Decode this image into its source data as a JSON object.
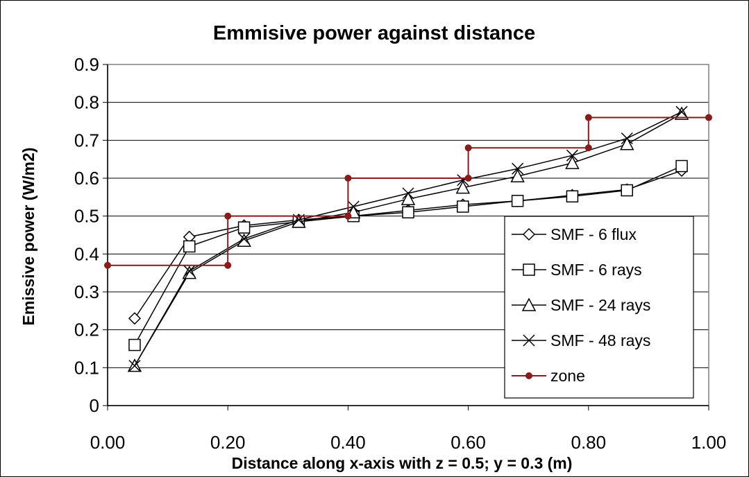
{
  "chart_data": {
    "type": "line",
    "title": "Emmisive power against distance",
    "xlabel": "Distance along x-axis with z = 0.5; y = 0.3 (m)",
    "ylabel": "Emissive power (W/m2)",
    "xlim": [
      0,
      1
    ],
    "ylim": [
      0,
      0.9
    ],
    "x_ticks": [
      "0.00",
      "0.20",
      "0.40",
      "0.60",
      "0.80",
      "1.00"
    ],
    "y_ticks": [
      "0",
      "0.1",
      "0.2",
      "0.3",
      "0.4",
      "0.5",
      "0.6",
      "0.7",
      "0.8",
      "0.9"
    ],
    "grid": "horizontal",
    "legend_position": "right",
    "series": [
      {
        "name": "SMF - 6 flux",
        "marker": "diamond",
        "color": "#000000",
        "x": [
          0.045,
          0.136,
          0.227,
          0.318,
          0.409,
          0.5,
          0.591,
          0.682,
          0.773,
          0.864,
          0.955
        ],
        "y": [
          0.23,
          0.445,
          0.475,
          0.49,
          0.5,
          0.515,
          0.53,
          0.54,
          0.555,
          0.57,
          0.62
        ]
      },
      {
        "name": "SMF - 6 rays",
        "marker": "square",
        "color": "#000000",
        "x": [
          0.045,
          0.136,
          0.227,
          0.318,
          0.409,
          0.5,
          0.591,
          0.682,
          0.773,
          0.864,
          0.955
        ],
        "y": [
          0.16,
          0.42,
          0.47,
          0.485,
          0.5,
          0.51,
          0.525,
          0.54,
          0.552,
          0.568,
          0.632
        ]
      },
      {
        "name": "SMF - 24 rays",
        "marker": "triangle",
        "color": "#000000",
        "x": [
          0.045,
          0.136,
          0.227,
          0.318,
          0.409,
          0.5,
          0.591,
          0.682,
          0.773,
          0.864,
          0.955
        ],
        "y": [
          0.105,
          0.35,
          0.435,
          0.485,
          0.51,
          0.545,
          0.575,
          0.605,
          0.64,
          0.69,
          0.77
        ]
      },
      {
        "name": "SMF - 48 rays",
        "marker": "x",
        "color": "#000000",
        "x": [
          0.045,
          0.136,
          0.227,
          0.318,
          0.409,
          0.5,
          0.591,
          0.682,
          0.773,
          0.864,
          0.955
        ],
        "y": [
          0.105,
          0.355,
          0.44,
          0.49,
          0.525,
          0.56,
          0.595,
          0.625,
          0.66,
          0.705,
          0.775
        ]
      },
      {
        "name": "zone",
        "marker": "dot",
        "color": "#8b1a1a",
        "x": [
          0,
          0.2,
          0.2,
          0.4,
          0.4,
          0.6,
          0.6,
          0.8,
          0.8,
          1.0
        ],
        "y": [
          0.37,
          0.37,
          0.5,
          0.5,
          0.6,
          0.6,
          0.68,
          0.68,
          0.76,
          0.76
        ]
      }
    ]
  }
}
